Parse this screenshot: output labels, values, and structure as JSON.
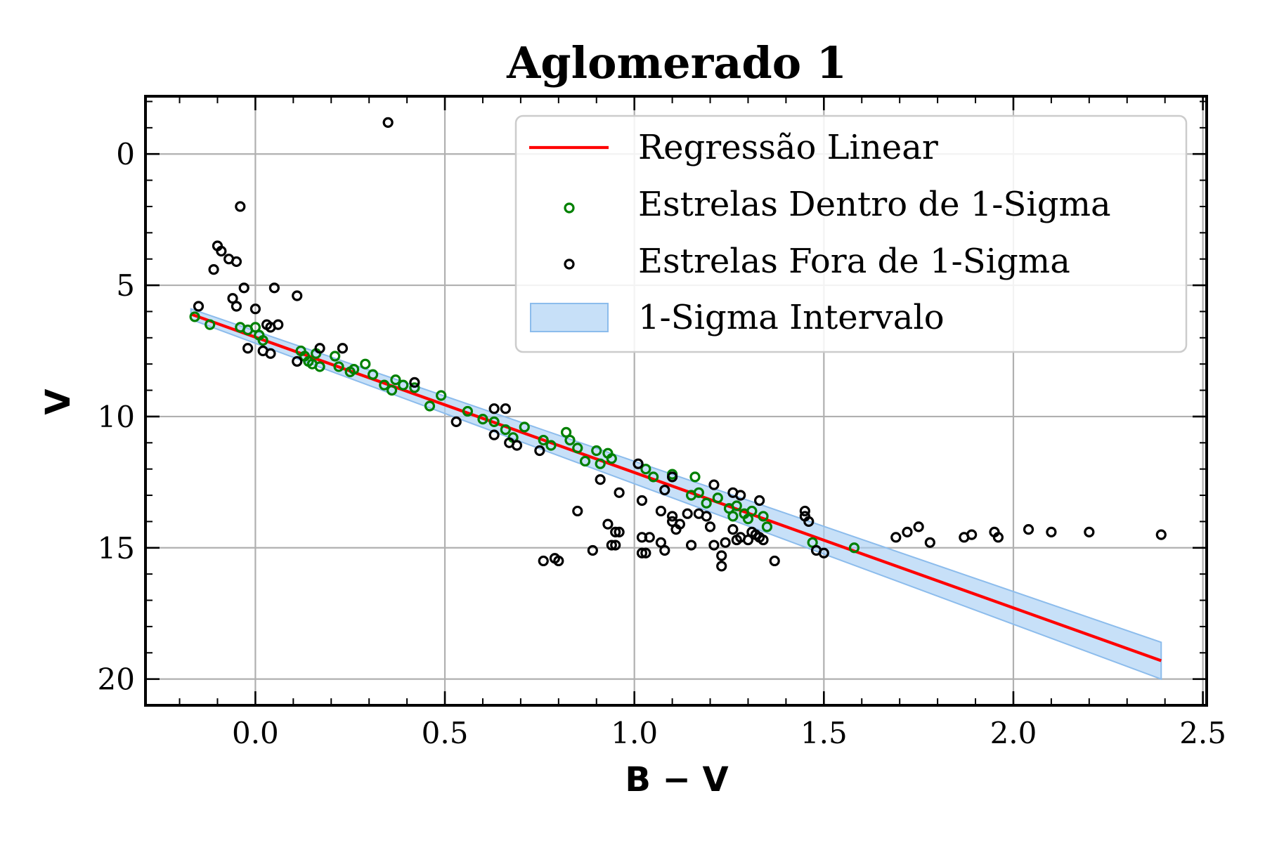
{
  "chart_data": {
    "type": "scatter",
    "title": "Aglomerado 1",
    "xlabel": "B − V",
    "ylabel": "V",
    "xlim": [
      -0.29,
      2.51
    ],
    "ylim": [
      21.0,
      -2.2
    ],
    "y_inverted": true,
    "xticks": [
      0.0,
      0.5,
      1.0,
      1.5,
      2.0,
      2.5
    ],
    "xtick_labels": [
      "0.0",
      "0.5",
      "1.0",
      "1.5",
      "2.0",
      "2.5"
    ],
    "yticks": [
      0,
      5,
      10,
      15,
      20
    ],
    "ytick_labels": [
      "0",
      "5",
      "10",
      "15",
      "20"
    ],
    "grid": true,
    "legend_position": "top-right",
    "colors": {
      "line": "#ff0000",
      "inside": "#008000",
      "outside": "#000000",
      "band_fill": "#a9cff5",
      "band_edge": "#8cbcec"
    },
    "regression": {
      "name": "Regressão Linear",
      "x": [
        -0.17,
        2.39
      ],
      "y": [
        6.1,
        19.3
      ]
    },
    "sigma_band": {
      "name": "1-Sigma Intervalo",
      "x": [
        -0.17,
        2.39
      ],
      "lower": [
        5.9,
        18.6
      ],
      "upper": [
        6.3,
        20.0
      ]
    },
    "series": [
      {
        "name": "Estrelas Dentro de 1-Sigma",
        "points": [
          [
            -0.16,
            6.2
          ],
          [
            -0.12,
            6.5
          ],
          [
            -0.04,
            6.6
          ],
          [
            -0.02,
            6.7
          ],
          [
            0.0,
            6.6
          ],
          [
            0.01,
            6.9
          ],
          [
            0.02,
            7.1
          ],
          [
            0.12,
            7.5
          ],
          [
            0.13,
            7.7
          ],
          [
            0.14,
            7.9
          ],
          [
            0.15,
            8.0
          ],
          [
            0.16,
            7.6
          ],
          [
            0.17,
            8.1
          ],
          [
            0.21,
            7.7
          ],
          [
            0.22,
            8.1
          ],
          [
            0.25,
            8.3
          ],
          [
            0.26,
            8.2
          ],
          [
            0.29,
            8.0
          ],
          [
            0.31,
            8.4
          ],
          [
            0.34,
            8.8
          ],
          [
            0.36,
            9.0
          ],
          [
            0.37,
            8.6
          ],
          [
            0.39,
            8.8
          ],
          [
            0.42,
            8.9
          ],
          [
            0.46,
            9.6
          ],
          [
            0.49,
            9.2
          ],
          [
            0.56,
            9.8
          ],
          [
            0.6,
            10.1
          ],
          [
            0.63,
            10.2
          ],
          [
            0.66,
            10.5
          ],
          [
            0.68,
            10.8
          ],
          [
            0.71,
            10.4
          ],
          [
            0.76,
            10.9
          ],
          [
            0.78,
            11.1
          ],
          [
            0.82,
            10.6
          ],
          [
            0.83,
            10.9
          ],
          [
            0.85,
            11.2
          ],
          [
            0.87,
            11.7
          ],
          [
            0.9,
            11.3
          ],
          [
            0.91,
            11.8
          ],
          [
            0.93,
            11.4
          ],
          [
            0.94,
            11.6
          ],
          [
            1.03,
            12.0
          ],
          [
            1.05,
            12.3
          ],
          [
            1.1,
            12.2
          ],
          [
            1.16,
            12.3
          ],
          [
            1.15,
            13.0
          ],
          [
            1.17,
            12.9
          ],
          [
            1.19,
            13.3
          ],
          [
            1.22,
            13.1
          ],
          [
            1.25,
            13.5
          ],
          [
            1.27,
            13.4
          ],
          [
            1.26,
            13.8
          ],
          [
            1.29,
            13.7
          ],
          [
            1.3,
            13.9
          ],
          [
            1.31,
            13.6
          ],
          [
            1.34,
            13.8
          ],
          [
            1.35,
            14.2
          ],
          [
            1.47,
            14.8
          ],
          [
            1.58,
            15.0
          ]
        ]
      },
      {
        "name": "Estrelas Fora de 1-Sigma",
        "points": [
          [
            0.35,
            -1.2
          ],
          [
            -0.04,
            2.0
          ],
          [
            -0.1,
            3.5
          ],
          [
            -0.09,
            3.7
          ],
          [
            -0.07,
            4.0
          ],
          [
            -0.11,
            4.4
          ],
          [
            -0.05,
            4.1
          ],
          [
            -0.03,
            5.1
          ],
          [
            0.05,
            5.1
          ],
          [
            0.11,
            5.4
          ],
          [
            -0.15,
            5.8
          ],
          [
            -0.06,
            5.5
          ],
          [
            -0.05,
            5.8
          ],
          [
            0.0,
            5.9
          ],
          [
            0.03,
            6.5
          ],
          [
            0.04,
            6.6
          ],
          [
            0.06,
            6.5
          ],
          [
            0.02,
            7.5
          ],
          [
            0.04,
            7.6
          ],
          [
            -0.02,
            7.4
          ],
          [
            0.11,
            7.9
          ],
          [
            0.17,
            7.4
          ],
          [
            0.23,
            7.4
          ],
          [
            0.42,
            8.7
          ],
          [
            0.53,
            10.2
          ],
          [
            0.63,
            9.7
          ],
          [
            0.66,
            9.7
          ],
          [
            0.63,
            10.7
          ],
          [
            0.67,
            11.0
          ],
          [
            0.69,
            11.1
          ],
          [
            0.75,
            11.3
          ],
          [
            1.01,
            11.8
          ],
          [
            0.85,
            13.6
          ],
          [
            0.91,
            12.4
          ],
          [
            0.96,
            12.9
          ],
          [
            0.93,
            14.1
          ],
          [
            0.95,
            14.4
          ],
          [
            0.96,
            14.4
          ],
          [
            0.94,
            14.9
          ],
          [
            0.95,
            14.9
          ],
          [
            0.89,
            15.1
          ],
          [
            0.76,
            15.5
          ],
          [
            0.79,
            15.4
          ],
          [
            0.8,
            15.5
          ],
          [
            1.02,
            13.2
          ],
          [
            1.07,
            13.6
          ],
          [
            1.02,
            14.6
          ],
          [
            1.04,
            14.6
          ],
          [
            1.07,
            14.8
          ],
          [
            1.08,
            15.1
          ],
          [
            1.02,
            15.2
          ],
          [
            1.03,
            15.2
          ],
          [
            1.1,
            12.3
          ],
          [
            1.1,
            13.8
          ],
          [
            1.1,
            14.0
          ],
          [
            1.12,
            14.1
          ],
          [
            1.14,
            13.7
          ],
          [
            1.11,
            14.3
          ],
          [
            1.17,
            13.7
          ],
          [
            1.19,
            13.8
          ],
          [
            1.2,
            14.2
          ],
          [
            1.15,
            14.9
          ],
          [
            1.21,
            12.6
          ],
          [
            1.21,
            14.9
          ],
          [
            1.23,
            15.3
          ],
          [
            1.23,
            15.7
          ],
          [
            1.24,
            14.8
          ],
          [
            1.26,
            12.9
          ],
          [
            1.26,
            14.3
          ],
          [
            1.28,
            13.0
          ],
          [
            1.27,
            14.7
          ],
          [
            1.28,
            14.6
          ],
          [
            1.3,
            14.7
          ],
          [
            1.31,
            14.4
          ],
          [
            1.32,
            14.5
          ],
          [
            1.33,
            14.6
          ],
          [
            1.33,
            13.2
          ],
          [
            1.34,
            14.7
          ],
          [
            1.37,
            15.5
          ],
          [
            1.45,
            13.6
          ],
          [
            1.45,
            13.8
          ],
          [
            1.46,
            14.0
          ],
          [
            1.48,
            15.1
          ],
          [
            1.5,
            15.2
          ],
          [
            1.69,
            14.6
          ],
          [
            1.72,
            14.4
          ],
          [
            1.75,
            14.2
          ],
          [
            1.78,
            14.8
          ],
          [
            1.87,
            14.6
          ],
          [
            1.89,
            14.5
          ],
          [
            1.95,
            14.4
          ],
          [
            1.96,
            14.6
          ],
          [
            2.04,
            14.3
          ],
          [
            2.1,
            14.4
          ],
          [
            2.2,
            14.4
          ],
          [
            2.39,
            14.5
          ],
          [
            1.08,
            12.8
          ]
        ]
      }
    ]
  }
}
